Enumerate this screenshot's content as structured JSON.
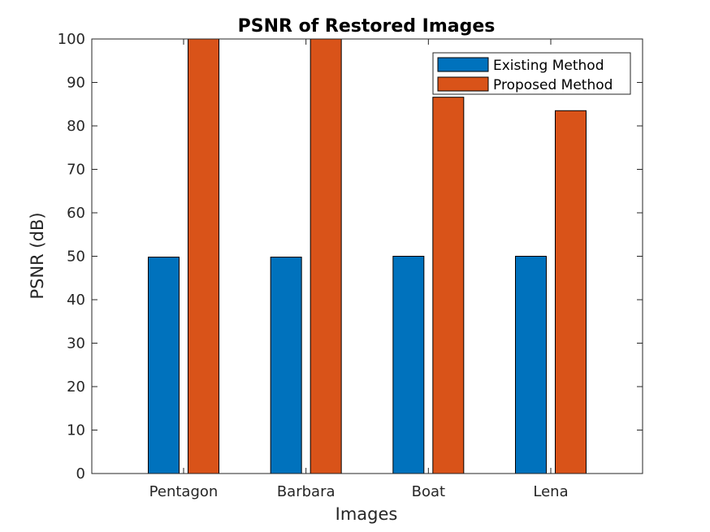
{
  "chart_data": {
    "type": "bar",
    "title": "PSNR of Restored Images",
    "xlabel": "Images",
    "ylabel": "PSNR (dB)",
    "categories": [
      "Pentagon",
      "Barbara",
      "Boat",
      "Lena"
    ],
    "series": [
      {
        "name": "Existing Method",
        "color": "#0072BD",
        "values": [
          49.8,
          49.8,
          50.0,
          50.0
        ]
      },
      {
        "name": "Proposed Method",
        "color": "#D95319",
        "values": [
          100,
          100,
          86.6,
          83.5
        ]
      }
    ],
    "ylim": [
      0,
      100
    ],
    "yticks": [
      0,
      10,
      20,
      30,
      40,
      50,
      60,
      70,
      80,
      90,
      100
    ],
    "grid": false,
    "legend_position": "top-right"
  }
}
